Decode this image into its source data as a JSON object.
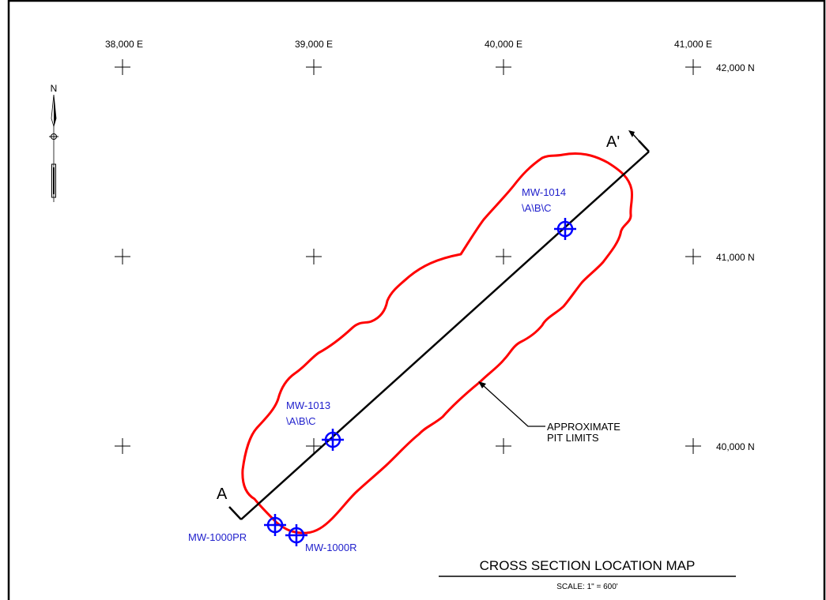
{
  "grid": {
    "easting_labels": [
      "38,000 E",
      "39,000 E",
      "40,000 E",
      "41,000 E"
    ],
    "northing_labels": [
      "42,000 N",
      "41,000 N",
      "40,000 N"
    ]
  },
  "north_arrow": {
    "label": "N"
  },
  "cross_section": {
    "start_label": "A",
    "end_label": "A'"
  },
  "wells": [
    {
      "id": "mw-1014",
      "name": "MW-1014",
      "sub": "\\A\\B\\C"
    },
    {
      "id": "mw-1013",
      "name": "MW-1013",
      "sub": "\\A\\B\\C"
    },
    {
      "id": "mw-1000pr",
      "name": "MW-1000PR"
    },
    {
      "id": "mw-1000r",
      "name": "MW-1000R"
    }
  ],
  "pit_callout": {
    "line1": "APPROXIMATE",
    "line2": "PIT LIMITS"
  },
  "title": {
    "text": "CROSS SECTION LOCATION MAP",
    "scale": "SCALE: 1\" = 600'"
  },
  "colors": {
    "pit_outline": "#ff0000",
    "well_symbol": "#0000ff",
    "well_label": "#1f1fcc",
    "section_line": "#000000"
  }
}
